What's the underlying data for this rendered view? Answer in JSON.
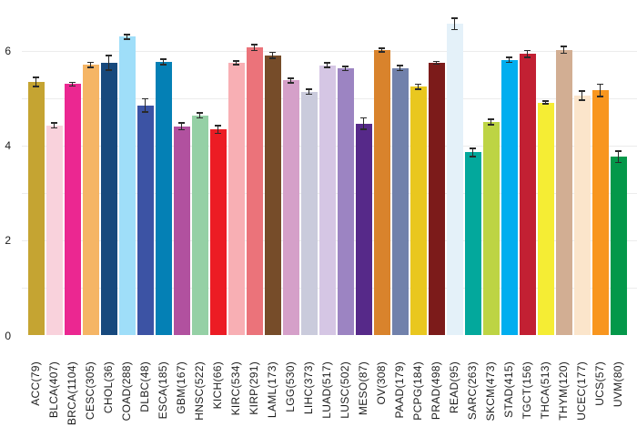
{
  "chart_data": {
    "type": "bar",
    "title": "",
    "xlabel": "",
    "ylabel": "",
    "categories": [
      "ACC(79)",
      "BLCA(407)",
      "BRCA(1104)",
      "CESC(305)",
      "CHOL(36)",
      "COAD(288)",
      "DLBC(48)",
      "ESCA(185)",
      "GBM(167)",
      "HNSC(522)",
      "KICH(66)",
      "KIRC(534)",
      "KIRP(291)",
      "LAML(173)",
      "LGG(530)",
      "LIHC(373)",
      "LUAD(517)",
      "LUSC(502)",
      "MESO(87)",
      "OV(308)",
      "PAAD(179)",
      "PCPG(184)",
      "PRAD(498)",
      "READ(95)",
      "SARC(263)",
      "SKCM(473)",
      "STAD(415)",
      "TGCT(156)",
      "THCA(513)",
      "THYM(120)",
      "UCEC(177)",
      "UCS(57)",
      "UVM(80)"
    ],
    "values": [
      5.35,
      4.43,
      5.3,
      5.71,
      5.75,
      6.3,
      4.85,
      5.77,
      4.41,
      4.64,
      4.34,
      5.75,
      6.07,
      5.91,
      5.38,
      5.14,
      5.7,
      5.63,
      4.47,
      6.02,
      5.64,
      5.25,
      5.75,
      6.57,
      3.86,
      4.5,
      5.81,
      5.94,
      4.91,
      6.02,
      5.06,
      5.17,
      3.77
    ],
    "errors": [
      0.1,
      0.05,
      0.04,
      0.05,
      0.15,
      0.05,
      0.14,
      0.06,
      0.07,
      0.05,
      0.08,
      0.04,
      0.06,
      0.06,
      0.05,
      0.05,
      0.05,
      0.04,
      0.12,
      0.04,
      0.05,
      0.05,
      0.03,
      0.12,
      0.09,
      0.06,
      0.05,
      0.07,
      0.03,
      0.07,
      0.1,
      0.13,
      0.12
    ],
    "colors": [
      "#C5A432",
      "#F9D2DC",
      "#EB2791",
      "#F5B565",
      "#17497D",
      "#9FDEF9",
      "#3C53A4",
      "#0480B5",
      "#B1519F",
      "#95D0A5",
      "#EC1C24",
      "#F8AFB4",
      "#EB737A",
      "#764C29",
      "#D5A0C9",
      "#CACBDC",
      "#D5C6E4",
      "#9C84C2",
      "#562989",
      "#D9832C",
      "#7181AB",
      "#E9C71F",
      "#7C1B1A",
      "#E4F1F9",
      "#03A89C",
      "#BDD444",
      "#02AEEF",
      "#C22033",
      "#F5ED34",
      "#D2AE93",
      "#FBE5CB",
      "#F8961F",
      "#04984A"
    ],
    "yticks": [
      0,
      2,
      4,
      6
    ],
    "gridline_values": [
      1,
      2,
      3,
      4,
      5,
      6
    ],
    "ylim": [
      0,
      7.0
    ],
    "grid_on": true,
    "legend": "none",
    "grid_color": "#ececec",
    "errorbar_color": "#2a2a2a",
    "tick_label_color": "#1c1c1c",
    "background_color": "#ffffff"
  }
}
